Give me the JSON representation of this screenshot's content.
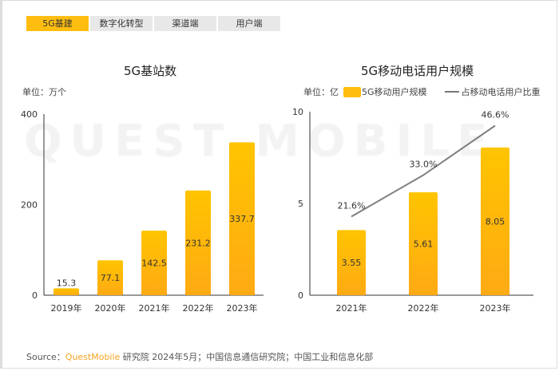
{
  "tabs": [
    {
      "label": "5G基建",
      "active": true
    },
    {
      "label": "数字化转型"
    },
    {
      "label": "渠道端"
    },
    {
      "label": "用户端"
    }
  ],
  "watermark": "QUEST MOBILE",
  "source": {
    "prefix": "Source：",
    "brand": "QuestMobile",
    "rest": " 研究院 2024年5月；中国信息通信研究院；中国工业和信息化部"
  },
  "colors": {
    "bar": "#ffbe0f",
    "line": "#7f7f7f"
  },
  "chart_data": [
    {
      "type": "bar",
      "title": "5G基站数",
      "unit": "单位：万个",
      "categories": [
        "2019年",
        "2020年",
        "2021年",
        "2022年",
        "2023年"
      ],
      "values": [
        15.3,
        77.1,
        142.5,
        231.2,
        337.7
      ],
      "ylim": [
        0,
        400
      ],
      "yticks": [
        0,
        200,
        400
      ],
      "grid": false
    },
    {
      "type": "bar+line",
      "title": "5G移动电话用户规模",
      "unit": "单位：亿",
      "categories": [
        "2021年",
        "2022年",
        "2023年"
      ],
      "series": [
        {
          "name": "5G移动用户规模",
          "type": "bar",
          "values": [
            3.55,
            5.61,
            8.05
          ]
        },
        {
          "name": "占移动电话用户比重",
          "type": "line",
          "values": [
            21.6,
            33.0,
            46.6
          ],
          "labels": [
            "21.6%",
            "33.0%",
            "46.6%"
          ]
        }
      ],
      "ylim": [
        0,
        10
      ],
      "yticks": [
        0,
        5,
        10
      ],
      "grid": false
    }
  ]
}
